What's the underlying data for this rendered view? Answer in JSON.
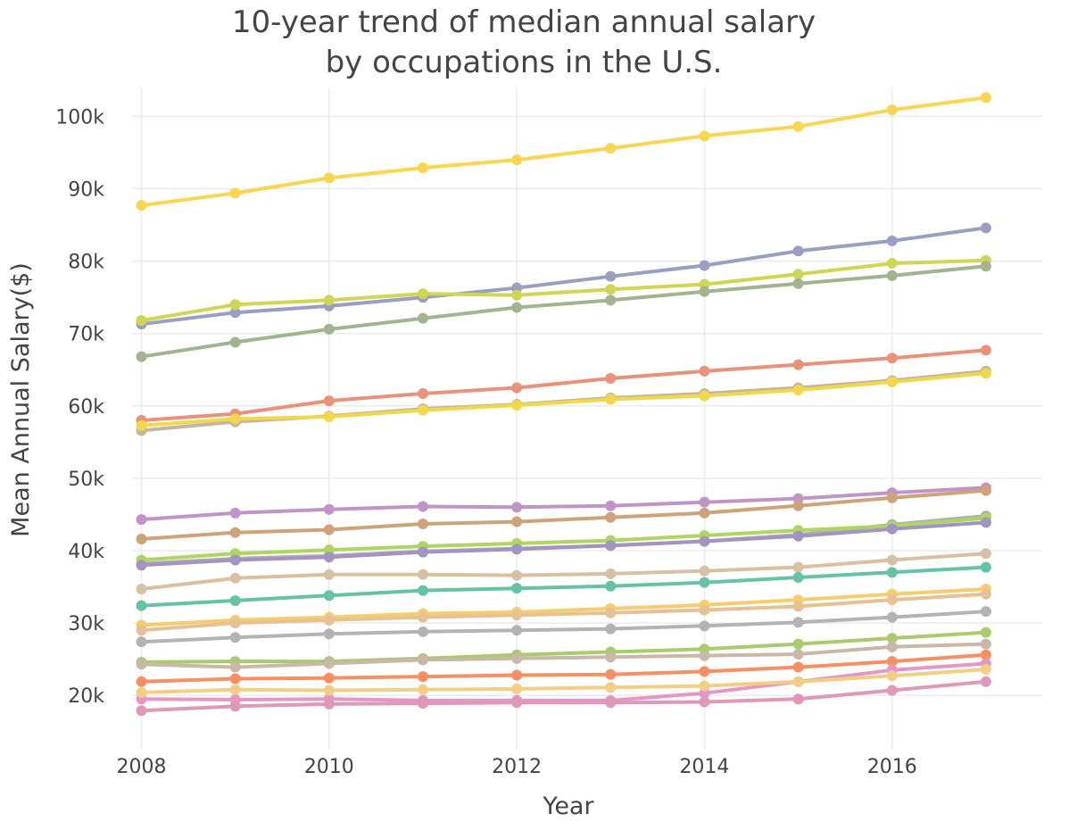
{
  "chart_data": {
    "type": "line",
    "title_lines": [
      "10-year trend of median annual salary",
      "by occupations in the U.S."
    ],
    "xlabel": "Year",
    "ylabel": "Mean Annual Salary($)",
    "xlim": [
      2007.9,
      2017.6
    ],
    "ylim": [
      12500,
      104000
    ],
    "x_ticks": [
      2008,
      2010,
      2012,
      2014,
      2016
    ],
    "y_ticks": [
      20000,
      30000,
      40000,
      50000,
      60000,
      70000,
      80000,
      90000,
      100000
    ],
    "y_tick_labels": [
      "20k",
      "30k",
      "40k",
      "50k",
      "60k",
      "70k",
      "80k",
      "90k",
      "100k"
    ],
    "grid": true,
    "legend": "none",
    "x": [
      2008,
      2009,
      2010,
      2011,
      2012,
      2013,
      2014,
      2015,
      2016,
      2017
    ],
    "series": [
      {
        "color": "#f9d550",
        "values": [
          87700,
          89400,
          91500,
          92900,
          94000,
          95600,
          97300,
          98600,
          100900,
          102600
        ]
      },
      {
        "color": "#9a9fc2",
        "values": [
          71300,
          72900,
          73800,
          75000,
          76300,
          77900,
          79400,
          81400,
          82800,
          84600
        ]
      },
      {
        "color": "#cfd653",
        "values": [
          71800,
          74000,
          74600,
          75500,
          75300,
          76100,
          76800,
          78200,
          79700,
          80100
        ]
      },
      {
        "color": "#a2b48e",
        "values": [
          66800,
          68800,
          70600,
          72100,
          73600,
          74600,
          75800,
          76900,
          78000,
          79300
        ]
      },
      {
        "color": "#e9927a",
        "values": [
          58000,
          58900,
          60700,
          61700,
          62500,
          63800,
          64800,
          65700,
          66600,
          67700
        ]
      },
      {
        "color": "#c3b59e",
        "values": [
          56600,
          57800,
          58600,
          59600,
          60200,
          61100,
          61700,
          62500,
          63500,
          64800
        ]
      },
      {
        "color": "#f0d84a",
        "values": [
          57300,
          58200,
          58500,
          59400,
          60100,
          60900,
          61400,
          62200,
          63300,
          64500
        ]
      },
      {
        "color": "#c194c8",
        "values": [
          44300,
          45200,
          45700,
          46100,
          46000,
          46200,
          46700,
          47200,
          48000,
          48700
        ]
      },
      {
        "color": "#d0a278",
        "values": [
          41600,
          42500,
          42900,
          43700,
          44000,
          44600,
          45200,
          46200,
          47300,
          48300
        ]
      },
      {
        "color": "#b0b0b0",
        "values": [
          38200,
          38900,
          39300,
          39900,
          40300,
          40700,
          41300,
          42200,
          43600,
          44800
        ]
      },
      {
        "color": "#add660",
        "values": [
          38700,
          39600,
          40100,
          40600,
          41000,
          41400,
          42100,
          42800,
          43400,
          44500
        ]
      },
      {
        "color": "#a293c0",
        "values": [
          38000,
          38700,
          39100,
          39800,
          40200,
          40700,
          41300,
          42000,
          43000,
          43900
        ]
      },
      {
        "color": "#d8c1a2",
        "values": [
          34700,
          36200,
          36700,
          36700,
          36600,
          36800,
          37200,
          37700,
          38700,
          39600
        ]
      },
      {
        "color": "#66c2a5",
        "values": [
          32400,
          33100,
          33800,
          34500,
          34800,
          35100,
          35600,
          36300,
          37000,
          37700
        ]
      },
      {
        "color": "#f6cd6e",
        "values": [
          29700,
          30400,
          30800,
          31300,
          31500,
          32000,
          32500,
          33200,
          34000,
          34700
        ]
      },
      {
        "color": "#e6c193",
        "values": [
          29000,
          30000,
          30400,
          30800,
          31100,
          31400,
          31800,
          32300,
          33200,
          34000
        ]
      },
      {
        "color": "#b3b3b3",
        "values": [
          27400,
          28000,
          28500,
          28800,
          29000,
          29200,
          29600,
          30100,
          30800,
          31600
        ]
      },
      {
        "color": "#a8cb6e",
        "values": [
          24600,
          24700,
          24700,
          25100,
          25600,
          26000,
          26400,
          27100,
          27900,
          28700
        ]
      },
      {
        "color": "#c9b8a7",
        "values": [
          24300,
          23900,
          24400,
          24900,
          25100,
          25300,
          25500,
          25700,
          26700,
          27100
        ]
      },
      {
        "color": "#f78f63",
        "values": [
          21900,
          22300,
          22400,
          22600,
          22800,
          22900,
          23300,
          23900,
          24700,
          25600
        ]
      },
      {
        "color": "#e497c6",
        "values": [
          19500,
          19400,
          19500,
          19300,
          19300,
          19300,
          20300,
          21900,
          23500,
          24400
        ]
      },
      {
        "color": "#f2cd84",
        "values": [
          20400,
          20800,
          20700,
          20800,
          20900,
          21100,
          21300,
          21900,
          22700,
          23600
        ]
      },
      {
        "color": "#e098b8",
        "values": [
          17900,
          18500,
          18800,
          18900,
          19000,
          19000,
          19100,
          19500,
          20700,
          21900
        ]
      }
    ]
  }
}
